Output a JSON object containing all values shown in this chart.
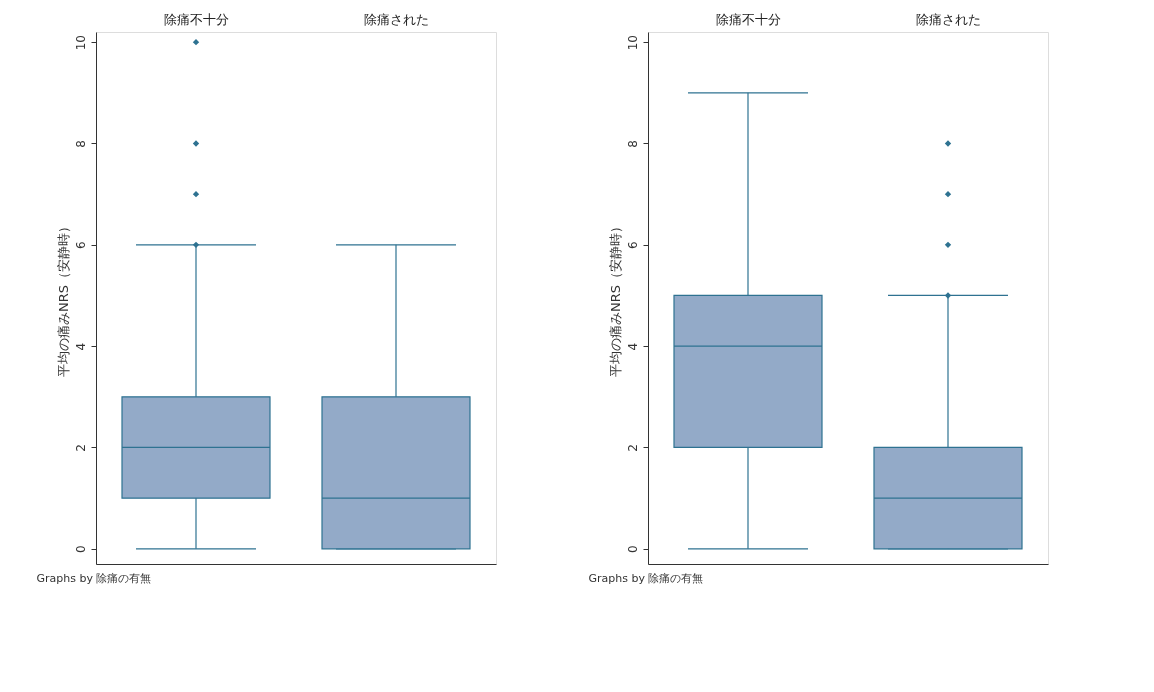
{
  "chart_data": [
    {
      "type": "box",
      "ylabel": "平均の痛みNRS（安静時）",
      "categories": [
        "除痛不十分",
        "除痛された"
      ],
      "ylim": [
        -0.3,
        10.2
      ],
      "yticks": [
        0,
        2,
        4,
        6,
        8,
        10
      ],
      "grid": false,
      "annotations": [
        "Graphs by 除痛の有無"
      ],
      "series": [
        {
          "color": "#93aac8",
          "boxes": [
            {
              "low": 0,
              "q1": 1,
              "median": 2,
              "q3": 3,
              "high": 6,
              "outliers": [
                6,
                7,
                8,
                10
              ]
            },
            {
              "low": 0,
              "q1": 0,
              "median": 1,
              "q3": 3,
              "high": 6
            }
          ]
        }
      ]
    },
    {
      "type": "box",
      "ylabel": "平均の痛みNRS（安静時）",
      "categories": [
        "除痛不十分",
        "除痛された"
      ],
      "ylim": [
        -0.3,
        10.2
      ],
      "yticks": [
        0,
        2,
        4,
        6,
        8,
        10
      ],
      "grid": false,
      "annotations": [
        "Graphs by 除痛の有無"
      ],
      "series": [
        {
          "color": "#93aac8",
          "boxes": [
            {
              "low": 0,
              "q1": 2,
              "median": 4,
              "q3": 5,
              "high": 9
            },
            {
              "low": 0,
              "q1": 0,
              "median": 1,
              "q3": 2,
              "high": 5,
              "outliers": [
                5,
                6,
                7,
                8
              ]
            }
          ]
        }
      ]
    }
  ]
}
